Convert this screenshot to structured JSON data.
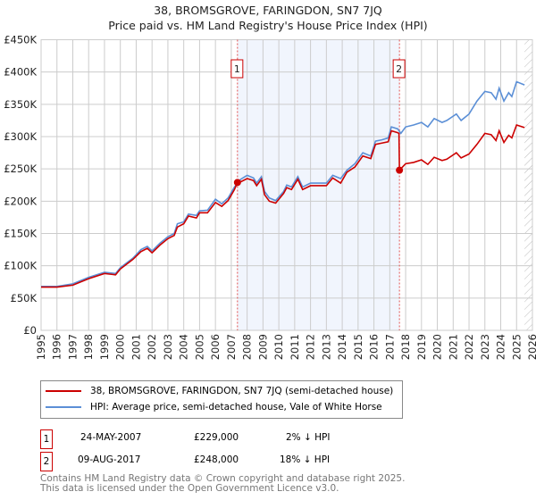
{
  "title": "38, BROMSGROVE, FARINGDON, SN7 7JQ",
  "subtitle": "Price paid vs. HM Land Registry's House Price Index (HPI)",
  "chart_data": {
    "type": "line",
    "title": "38, BROMSGROVE, FARINGDON, SN7 7JQ — Price paid vs. HM Land Registry's House Price Index (HPI)",
    "xlim": [
      1995,
      2026
    ],
    "ylim": [
      0,
      450000
    ],
    "y_ticks": [
      {
        "v": 0,
        "label": "£0"
      },
      {
        "v": 50000,
        "label": "£50K"
      },
      {
        "v": 100000,
        "label": "£100K"
      },
      {
        "v": 150000,
        "label": "£150K"
      },
      {
        "v": 200000,
        "label": "£200K"
      },
      {
        "v": 250000,
        "label": "£250K"
      },
      {
        "v": 300000,
        "label": "£300K"
      },
      {
        "v": 350000,
        "label": "£350K"
      },
      {
        "v": 400000,
        "label": "£400K"
      },
      {
        "v": 450000,
        "label": "£450K"
      }
    ],
    "x_ticks": [
      "1995",
      "1996",
      "1997",
      "1998",
      "1999",
      "2000",
      "2001",
      "2002",
      "2003",
      "2004",
      "2005",
      "2006",
      "2007",
      "2008",
      "2009",
      "2010",
      "2011",
      "2012",
      "2013",
      "2014",
      "2015",
      "2016",
      "2017",
      "2018",
      "2019",
      "2020",
      "2021",
      "2022",
      "2023",
      "2024",
      "2025",
      "2026"
    ],
    "grid": true,
    "shaded_period": [
      2007.39,
      2017.61
    ],
    "hatched_from": 2025.5,
    "series": [
      {
        "name": "38, BROMSGROVE, FARINGDON, SN7 7JQ (semi-detached house)",
        "color": "#cc0000",
        "points": [
          [
            1995,
            67
          ],
          [
            1996,
            67
          ],
          [
            1997,
            70
          ],
          [
            1998,
            80
          ],
          [
            1999,
            88
          ],
          [
            1999.7,
            86
          ],
          [
            2000,
            95
          ],
          [
            2000.8,
            110
          ],
          [
            2001.3,
            122
          ],
          [
            2001.7,
            127
          ],
          [
            2002,
            120
          ],
          [
            2002.5,
            132
          ],
          [
            2003,
            142
          ],
          [
            2003.4,
            147
          ],
          [
            2003.6,
            160
          ],
          [
            2004,
            165
          ],
          [
            2004.3,
            177
          ],
          [
            2004.8,
            174
          ],
          [
            2005,
            182
          ],
          [
            2005.5,
            182
          ],
          [
            2006,
            198
          ],
          [
            2006.4,
            192
          ],
          [
            2006.8,
            201
          ],
          [
            2007.2,
            218
          ],
          [
            2007.39,
            229
          ],
          [
            2007.6,
            230
          ],
          [
            2008,
            235
          ],
          [
            2008.4,
            232
          ],
          [
            2008.6,
            224
          ],
          [
            2008.9,
            234
          ],
          [
            2009.1,
            210
          ],
          [
            2009.4,
            200
          ],
          [
            2009.8,
            197
          ],
          [
            2010.3,
            212
          ],
          [
            2010.5,
            221
          ],
          [
            2010.8,
            218
          ],
          [
            2011.2,
            234
          ],
          [
            2011.5,
            218
          ],
          [
            2012,
            224
          ],
          [
            2012.5,
            224
          ],
          [
            2013,
            224
          ],
          [
            2013.4,
            236
          ],
          [
            2013.9,
            228
          ],
          [
            2014.3,
            245
          ],
          [
            2014.8,
            253
          ],
          [
            2015.3,
            270
          ],
          [
            2015.8,
            266
          ],
          [
            2016.1,
            288
          ],
          [
            2016.5,
            290
          ],
          [
            2016.9,
            292
          ],
          [
            2017.1,
            309
          ],
          [
            2017.5,
            306
          ],
          [
            2017.58,
            305
          ],
          [
            2017.61,
            248
          ],
          [
            2018,
            258
          ],
          [
            2018.5,
            260
          ],
          [
            2019,
            264
          ],
          [
            2019.4,
            257
          ],
          [
            2019.8,
            268
          ],
          [
            2020.3,
            263
          ],
          [
            2020.6,
            265
          ],
          [
            2021.2,
            275
          ],
          [
            2021.5,
            267
          ],
          [
            2022,
            273
          ],
          [
            2022.5,
            288
          ],
          [
            2023,
            305
          ],
          [
            2023.4,
            303
          ],
          [
            2023.7,
            294
          ],
          [
            2023.9,
            309
          ],
          [
            2024.2,
            291
          ],
          [
            2024.5,
            302
          ],
          [
            2024.7,
            298
          ],
          [
            2025,
            318
          ],
          [
            2025.5,
            314
          ]
        ]
      },
      {
        "name": "HPI: Average price, semi-detached house, Vale of White Horse",
        "color": "#5b8fd6",
        "points": [
          [
            1995,
            68
          ],
          [
            1996,
            68
          ],
          [
            1997,
            72
          ],
          [
            1998,
            82
          ],
          [
            1999,
            90
          ],
          [
            1999.7,
            88
          ],
          [
            2000,
            97
          ],
          [
            2000.8,
            112
          ],
          [
            2001.3,
            125
          ],
          [
            2001.7,
            130
          ],
          [
            2002,
            123
          ],
          [
            2002.5,
            135
          ],
          [
            2003,
            145
          ],
          [
            2003.4,
            150
          ],
          [
            2003.6,
            165
          ],
          [
            2004,
            168
          ],
          [
            2004.3,
            180
          ],
          [
            2004.8,
            178
          ],
          [
            2005,
            185
          ],
          [
            2005.5,
            186
          ],
          [
            2006,
            203
          ],
          [
            2006.4,
            196
          ],
          [
            2006.8,
            205
          ],
          [
            2007.2,
            222
          ],
          [
            2007.6,
            234
          ],
          [
            2008,
            240
          ],
          [
            2008.4,
            236
          ],
          [
            2008.6,
            228
          ],
          [
            2008.9,
            238
          ],
          [
            2009.1,
            215
          ],
          [
            2009.4,
            205
          ],
          [
            2009.8,
            201
          ],
          [
            2010.3,
            215
          ],
          [
            2010.5,
            225
          ],
          [
            2010.8,
            222
          ],
          [
            2011.2,
            238
          ],
          [
            2011.5,
            222
          ],
          [
            2012,
            228
          ],
          [
            2012.5,
            228
          ],
          [
            2013,
            228
          ],
          [
            2013.4,
            240
          ],
          [
            2013.9,
            235
          ],
          [
            2014.3,
            248
          ],
          [
            2014.8,
            258
          ],
          [
            2015.3,
            275
          ],
          [
            2015.8,
            270
          ],
          [
            2016.1,
            293
          ],
          [
            2016.5,
            295
          ],
          [
            2016.9,
            298
          ],
          [
            2017.1,
            315
          ],
          [
            2017.5,
            312
          ],
          [
            2017.7,
            305
          ],
          [
            2018,
            315
          ],
          [
            2018.5,
            318
          ],
          [
            2019,
            322
          ],
          [
            2019.4,
            315
          ],
          [
            2019.8,
            328
          ],
          [
            2020.3,
            322
          ],
          [
            2020.6,
            325
          ],
          [
            2021.2,
            335
          ],
          [
            2021.5,
            325
          ],
          [
            2022,
            335
          ],
          [
            2022.5,
            355
          ],
          [
            2023,
            370
          ],
          [
            2023.4,
            368
          ],
          [
            2023.7,
            358
          ],
          [
            2023.9,
            375
          ],
          [
            2024.2,
            355
          ],
          [
            2024.5,
            368
          ],
          [
            2024.7,
            362
          ],
          [
            2025,
            385
          ],
          [
            2025.5,
            380
          ]
        ]
      }
    ],
    "y_units": "thousands GBP in points",
    "sales": [
      {
        "label": "1",
        "x": 2007.39,
        "y": 229000
      },
      {
        "label": "2",
        "x": 2017.61,
        "y": 248000
      }
    ]
  },
  "legend": [
    {
      "label": "38, BROMSGROVE, FARINGDON, SN7 7JQ (semi-detached house)",
      "color": "#cc0000"
    },
    {
      "label": "HPI: Average price, semi-detached house, Vale of White Horse",
      "color": "#5b8fd6"
    }
  ],
  "transactions": [
    {
      "num": "1",
      "date": "24-MAY-2007",
      "price": "£229,000",
      "hpi": "2% ↓ HPI"
    },
    {
      "num": "2",
      "date": "09-AUG-2017",
      "price": "£248,000",
      "hpi": "18% ↓ HPI"
    }
  ],
  "footer": {
    "line1": "Contains HM Land Registry data © Crown copyright and database right 2025.",
    "line2": "This data is licensed under the Open Government Licence v3.0."
  }
}
